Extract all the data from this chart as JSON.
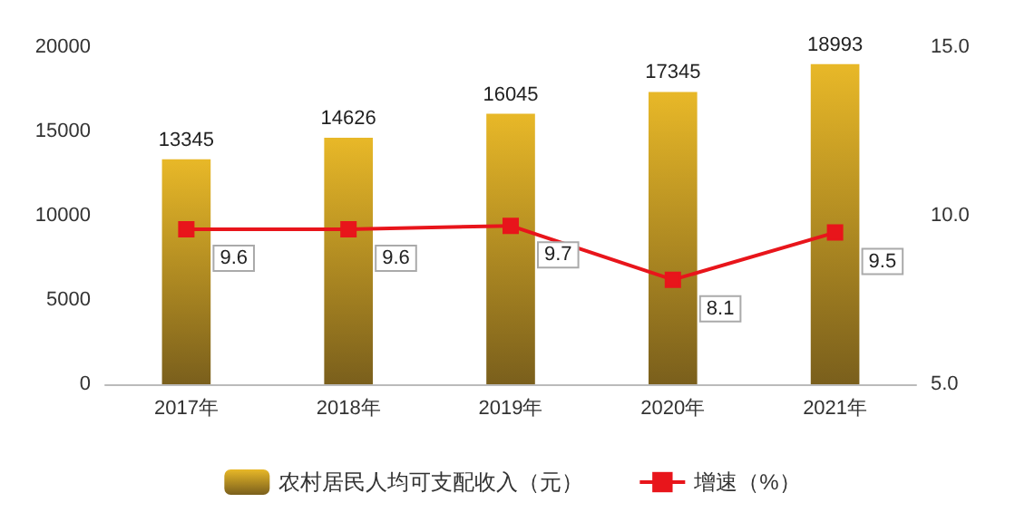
{
  "chart_data": {
    "type": "bar",
    "categories": [
      "2017年",
      "2018年",
      "2019年",
      "2020年",
      "2021年"
    ],
    "series": [
      {
        "name": "农村居民人均可支配收入（元）",
        "color": "#e8b828",
        "values": [
          13345,
          14626,
          16045,
          17345,
          18993
        ]
      },
      {
        "name": "增速（%）",
        "type": "line",
        "axis": "y2",
        "color": "#e8151b",
        "values": [
          9.6,
          9.6,
          9.7,
          8.1,
          9.5
        ]
      }
    ],
    "ylim": [
      0,
      20000
    ],
    "yticks": [
      0,
      5000,
      10000,
      15000,
      20000
    ],
    "y2lim": [
      5,
      15
    ],
    "y2ticks": [
      {
        "value": 5,
        "label": "5.0"
      },
      {
        "value": 10,
        "label": "10.0"
      },
      {
        "value": 15,
        "label": "15.0"
      }
    ],
    "data_labels": true,
    "legend": "bottom",
    "marker": "square",
    "grid": false
  }
}
